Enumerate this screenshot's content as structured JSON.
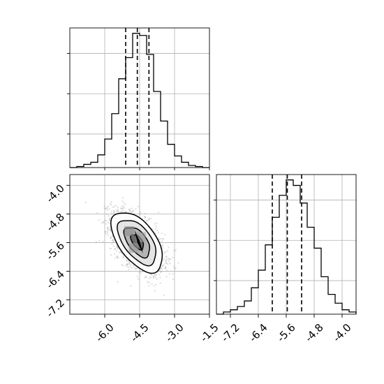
{
  "chart_data": [
    {
      "type": "histogram",
      "panel": "top-left",
      "variable": "x",
      "style": "step",
      "grid": true,
      "bin_edges": [
        -7.5,
        -7.2,
        -6.9,
        -6.6,
        -6.3,
        -6.0,
        -5.7,
        -5.4,
        -5.1,
        -4.8,
        -4.5,
        -4.2,
        -3.9,
        -3.6,
        -3.3,
        -3.0,
        -2.7,
        -2.4,
        -2.1,
        -1.8,
        -1.5
      ],
      "counts": [
        0,
        1,
        3,
        5,
        12,
        27,
        51,
        84,
        104,
        127,
        125,
        107,
        72,
        44,
        22,
        11,
        5,
        2,
        1,
        0
      ],
      "quantile_lines": [
        -5.1,
        -4.6,
        -4.1
      ],
      "xlim": [
        -7.5,
        -1.5
      ],
      "yticks_shown": false
    },
    {
      "type": "scatter-contour",
      "panel": "bottom-left",
      "variables": [
        "x",
        "y"
      ],
      "grid": true,
      "center": [
        -4.6,
        -5.58
      ],
      "stddev": [
        0.55,
        0.42
      ],
      "correlation": -0.55,
      "contour_levels": [
        "0.5-sigma",
        "1-sigma",
        "1.5-sigma",
        "2-sigma"
      ],
      "xlim": [
        -7.5,
        -1.5
      ],
      "ylim": [
        -7.6,
        -3.7
      ],
      "xticks": [
        "-6.0",
        "-4.5",
        "-3.0",
        "-1.5"
      ],
      "xtick_values": [
        -6.0,
        -4.5,
        -3.0,
        -1.5
      ],
      "yticks": [
        "-4.0",
        "-4.8",
        "-5.6",
        "-6.4",
        "-7.2"
      ],
      "ytick_values": [
        -4.0,
        -4.8,
        -5.6,
        -6.4,
        -7.2
      ]
    },
    {
      "type": "histogram",
      "panel": "bottom-right",
      "variable": "y",
      "style": "step",
      "grid": true,
      "bin_edges": [
        -7.6,
        -7.4,
        -7.2,
        -7.0,
        -6.8,
        -6.6,
        -6.4,
        -6.2,
        -6.0,
        -5.8,
        -5.6,
        -5.4,
        -5.2,
        -5.0,
        -4.8,
        -4.6,
        -4.4,
        -4.2,
        -4.0,
        -3.8,
        -3.6
      ],
      "counts": [
        0,
        2,
        4,
        7,
        12,
        24,
        40,
        63,
        88,
        108,
        122,
        117,
        101,
        79,
        60,
        34,
        18,
        10,
        4,
        2
      ],
      "quantile_lines": [
        -6.0,
        -5.57,
        -5.16
      ],
      "xlim": [
        -7.6,
        -3.6
      ],
      "xticks": [
        "-7.2",
        "-6.4",
        "-5.6",
        "-4.8",
        "-4.0"
      ],
      "xtick_values": [
        -7.2,
        -6.4,
        -5.6,
        -4.8,
        -4.0
      ],
      "yticks_shown": false
    }
  ]
}
